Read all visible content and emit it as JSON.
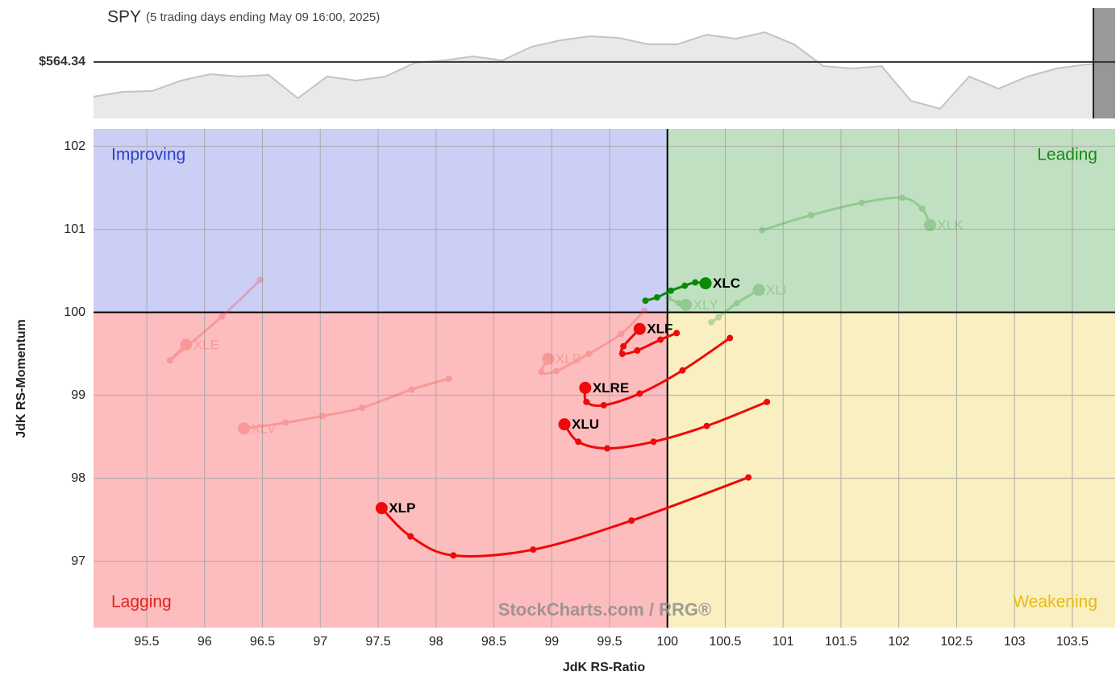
{
  "chart_data": [
    {
      "type": "area",
      "title": "SPY",
      "subtitle": "(5 trading days ending May 09 16:00, 2025)",
      "values": [
        557.98,
        558.86,
        559.01,
        560.93,
        562.11,
        561.67,
        561.96,
        557.69,
        561.67,
        560.93,
        561.67,
        564.17,
        564.61,
        565.35,
        564.61,
        567.12,
        568.3,
        569.03,
        568.74,
        567.56,
        567.56,
        569.33,
        568.59,
        569.77,
        567.56,
        563.58,
        563.14,
        563.58,
        557.24,
        555.77,
        561.67,
        559.45,
        561.67,
        563.14,
        563.88,
        564.17
      ],
      "ylim": [
        554,
        574.2
      ],
      "color": "#c4c4c4",
      "fill": "#e9e9e9",
      "reference_line": {
        "value": 564.34,
        "label": "$564.34"
      }
    },
    {
      "type": "rrg",
      "x_label": "JdK RS-Ratio",
      "y_label": "JdK RS-Momentum",
      "xlim": [
        95.04,
        103.87
      ],
      "ylim": [
        96.2,
        102.21
      ],
      "xticks": [
        95.5,
        96,
        96.5,
        97,
        97.5,
        98,
        98.5,
        99,
        99.5,
        100,
        100.5,
        101,
        101.5,
        102,
        102.5,
        103,
        103.5
      ],
      "yticks": [
        97,
        98,
        99,
        100,
        101,
        102
      ],
      "grid": true,
      "center": {
        "x": 100,
        "y": 100
      },
      "quadrants": [
        {
          "name": "Improving",
          "corner": "top-left",
          "color": "#2b3fc8",
          "fill": "#cbcff5"
        },
        {
          "name": "Leading",
          "corner": "top-right",
          "color": "#168a16",
          "fill": "#c1e0c1"
        },
        {
          "name": "Lagging",
          "corner": "bottom-left",
          "color": "#e3201f",
          "fill": "#fdbdbe"
        },
        {
          "name": "Weakening",
          "corner": "bottom-right",
          "color": "#e6bb14",
          "fill": "#faefc0"
        }
      ],
      "watermark": "StockCharts.com / RRG®",
      "series": [
        {
          "name": "XLE",
          "color": "#f04545",
          "opacity": 0.3,
          "x": [
            96.48,
            96.15,
            95.7,
            95.84
          ],
          "y": [
            100.39,
            99.95,
            99.42,
            99.61
          ]
        },
        {
          "name": "XLV",
          "color": "#f04545",
          "opacity": 0.3,
          "x": [
            98.11,
            97.79,
            97.36,
            97.02,
            96.7,
            96.34
          ],
          "y": [
            99.2,
            99.07,
            98.85,
            98.75,
            98.67,
            98.6
          ]
        },
        {
          "name": "XLB",
          "color": "#f04545",
          "opacity": 0.3,
          "x": [
            99.8,
            99.6,
            99.32,
            99.04,
            98.91,
            98.97
          ],
          "y": [
            100.02,
            99.74,
            99.5,
            99.29,
            99.28,
            99.44
          ]
        },
        {
          "name": "XLK",
          "color": "#2a9a2a",
          "opacity": 0.3,
          "x": [
            100.82,
            101.24,
            101.68,
            102.03,
            102.2,
            102.27
          ],
          "y": [
            100.99,
            101.17,
            101.32,
            101.38,
            101.25,
            101.05
          ]
        },
        {
          "name": "XLI",
          "color": "#2a9a2a",
          "opacity": 0.3,
          "x": [
            100.38,
            100.44,
            100.6,
            100.79
          ],
          "y": [
            99.88,
            99.94,
            100.11,
            100.27
          ]
        },
        {
          "name": "XLY",
          "color": "#2a9a2a",
          "opacity": 0.3,
          "x": [
            100.01,
            100.1,
            100.16
          ],
          "y": [
            100.17,
            100.11,
            100.09
          ]
        },
        {
          "name": "XLC",
          "color": "#0a8a0a",
          "opacity": 1,
          "x": [
            99.81,
            99.91,
            100.03,
            100.15,
            100.24,
            100.33
          ],
          "y": [
            100.14,
            100.18,
            100.26,
            100.32,
            100.36,
            100.35
          ]
        },
        {
          "name": "XLF",
          "color": "#ee0a0a",
          "opacity": 1,
          "x": [
            100.08,
            99.94,
            99.74,
            99.61,
            99.62,
            99.76
          ],
          "y": [
            99.75,
            99.67,
            99.54,
            99.5,
            99.59,
            99.8
          ]
        },
        {
          "name": "XLRE",
          "color": "#ee0a0a",
          "opacity": 1,
          "x": [
            100.54,
            100.13,
            99.76,
            99.45,
            99.3,
            99.29
          ],
          "y": [
            99.69,
            99.3,
            99.02,
            98.88,
            98.92,
            99.09
          ]
        },
        {
          "name": "XLU",
          "color": "#ee0a0a",
          "opacity": 1,
          "x": [
            100.86,
            100.34,
            99.88,
            99.48,
            99.23,
            99.11
          ],
          "y": [
            98.92,
            98.63,
            98.44,
            98.36,
            98.44,
            98.65
          ]
        },
        {
          "name": "XLP",
          "color": "#ee0a0a",
          "opacity": 1,
          "x": [
            100.7,
            99.69,
            98.84,
            98.15,
            97.78,
            97.53
          ],
          "y": [
            98.01,
            97.49,
            97.14,
            97.07,
            97.3,
            97.64
          ]
        }
      ]
    }
  ]
}
